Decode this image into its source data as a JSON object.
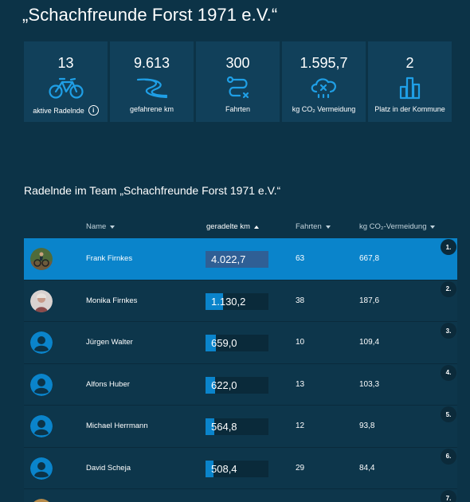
{
  "page_title": "„Schachfreunde Forst 1971 e.V.“",
  "stats": [
    {
      "value": "13",
      "label": "aktive Radelnde",
      "icon": "bicycle-icon",
      "has_info": true
    },
    {
      "value": "9.613",
      "label": "gefahrene km",
      "icon": "road-icon",
      "has_info": false
    },
    {
      "value": "300",
      "label": "Fahrten",
      "icon": "route-icon",
      "has_info": false
    },
    {
      "value": "1.595,7",
      "label": "kg CO₂ Vermeidung",
      "icon": "co2-cloud-icon",
      "has_info": false
    },
    {
      "value": "2",
      "label": "Platz in der Kommune",
      "icon": "ranking-bars-icon",
      "has_info": false
    }
  ],
  "section_title": "Radelnde im Team „Schachfreunde Forst 1971 e.V.“",
  "table": {
    "columns": [
      {
        "label": "Name",
        "sort": "down"
      },
      {
        "label": "geradelte km",
        "sort": "up"
      },
      {
        "label": "Fahrten",
        "sort": "down"
      },
      {
        "label": "kg CO₂-Vermeidung",
        "sort": "down"
      }
    ],
    "rows": [
      {
        "name": "Frank Firnkes",
        "km": "4.022,7",
        "km_fraction": 1.0,
        "trips": "63",
        "co2": "667,8",
        "rank": "1.",
        "avatar": "photo-cyclist",
        "highlight": true
      },
      {
        "name": "Monika Firnkes",
        "km": "1.130,2",
        "km_fraction": 0.28,
        "trips": "38",
        "co2": "187,6",
        "rank": "2.",
        "avatar": "photo-person",
        "highlight": false
      },
      {
        "name": "Jürgen Walter",
        "km": "659,0",
        "km_fraction": 0.164,
        "trips": "10",
        "co2": "109,4",
        "rank": "3.",
        "avatar": "default-user-icon",
        "highlight": false
      },
      {
        "name": "Alfons Huber",
        "km": "622,0",
        "km_fraction": 0.155,
        "trips": "13",
        "co2": "103,3",
        "rank": "4.",
        "avatar": "default-user-icon",
        "highlight": false
      },
      {
        "name": "Michael Herrmann",
        "km": "564,8",
        "km_fraction": 0.14,
        "trips": "12",
        "co2": "93,8",
        "rank": "5.",
        "avatar": "default-user-icon",
        "highlight": false
      },
      {
        "name": "David Scheja",
        "km": "508,4",
        "km_fraction": 0.126,
        "trips": "29",
        "co2": "84,4",
        "rank": "6.",
        "avatar": "default-user-icon",
        "highlight": false
      },
      {
        "name": "",
        "km": "",
        "km_fraction": 0,
        "trips": "",
        "co2": "",
        "rank": "7.",
        "avatar": "photo-partial",
        "highlight": false
      }
    ]
  },
  "colors": {
    "background": "#0c3347",
    "tile": "#11405a",
    "accent": "#0a84cb",
    "highlight_row": "#0a84cb"
  }
}
